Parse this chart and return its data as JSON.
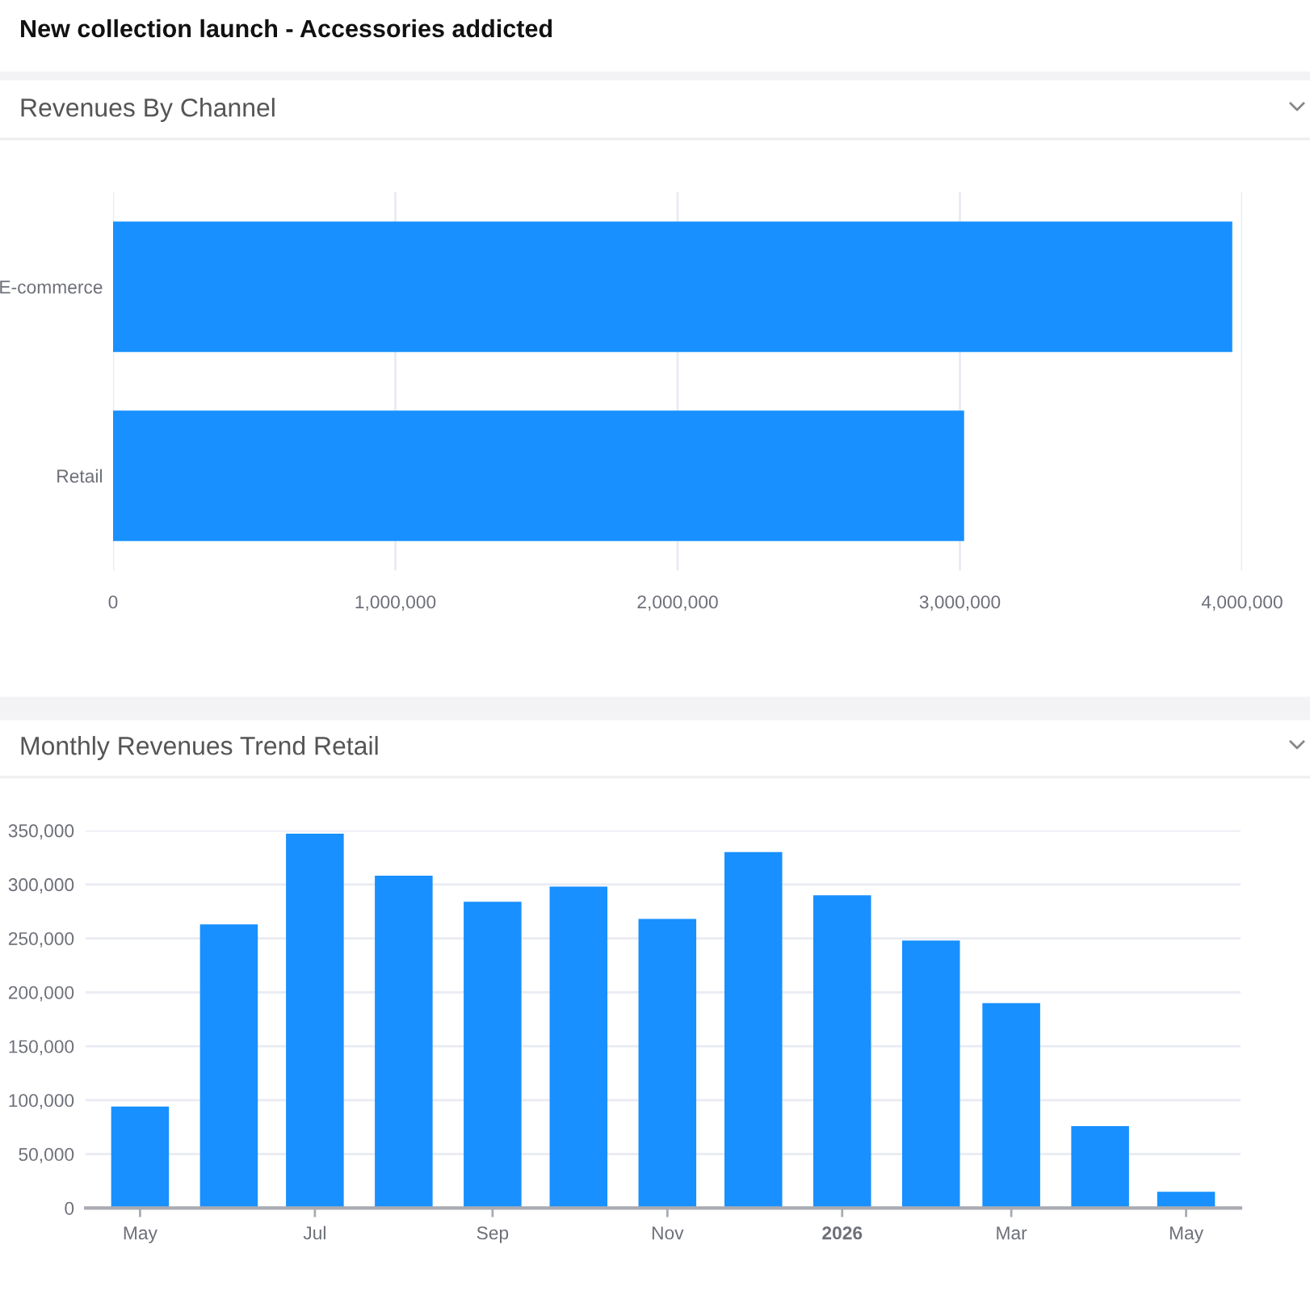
{
  "chart_data": [
    {
      "type": "bar",
      "title": "New collection launch - Accessories addicted",
      "subtitle": "Revenues By Channel",
      "orientation": "horizontal",
      "categories": [
        "E-commerce",
        "Retail"
      ],
      "values": [
        3965000,
        3015000
      ],
      "color": "#1890ff",
      "xlim": [
        0,
        4000000
      ],
      "xticks": [
        0,
        {
          "value": 1000000,
          "label": "1,000,000"
        },
        {
          "value": 2000000,
          "label": "2,000,000"
        },
        {
          "value": 3000000,
          "label": "3,000,000"
        },
        {
          "value": 4000000,
          "label": "4,000,000"
        }
      ],
      "grid": "x"
    },
    {
      "type": "bar",
      "title": "Monthly Revenues Trend Retail",
      "x": [
        "2025-05",
        "2025-06",
        "2025-07",
        "2025-08",
        "2025-09",
        "2025-10",
        "2025-11",
        "2025-12",
        "2026-01",
        "2026-02",
        "2026-03",
        "2026-04",
        "2026-05"
      ],
      "values": [
        94000,
        263000,
        347000,
        308000,
        284000,
        298000,
        268000,
        330000,
        290000,
        248000,
        190000,
        76000,
        15000
      ],
      "color": "#1890ff",
      "xlim": [
        "2025-04-12",
        "2026-05-20"
      ],
      "xticks": [
        {
          "value": "2025-05",
          "label": "May"
        },
        {
          "value": "2025-07",
          "label": "Jul"
        },
        {
          "value": "2025-09",
          "label": "Sep"
        },
        {
          "value": "2025-11",
          "label": "Nov"
        },
        {
          "value": "2026-01",
          "label": "2026"
        },
        {
          "value": "2026-03",
          "label": "Mar"
        },
        {
          "value": "2026-05",
          "label": "May"
        }
      ],
      "ylim": [
        0,
        350000
      ],
      "yticks": [
        0,
        {
          "value": 50000,
          "label": "50,000"
        },
        {
          "value": 100000,
          "label": "100,000"
        },
        {
          "value": 150000,
          "label": "150,000"
        },
        {
          "value": 200000,
          "label": "200,000"
        },
        {
          "value": 250000,
          "label": "250,000"
        },
        {
          "value": 300000,
          "label": "300,000"
        },
        {
          "value": 350000,
          "label": "350,000"
        }
      ],
      "grid": "y"
    }
  ]
}
